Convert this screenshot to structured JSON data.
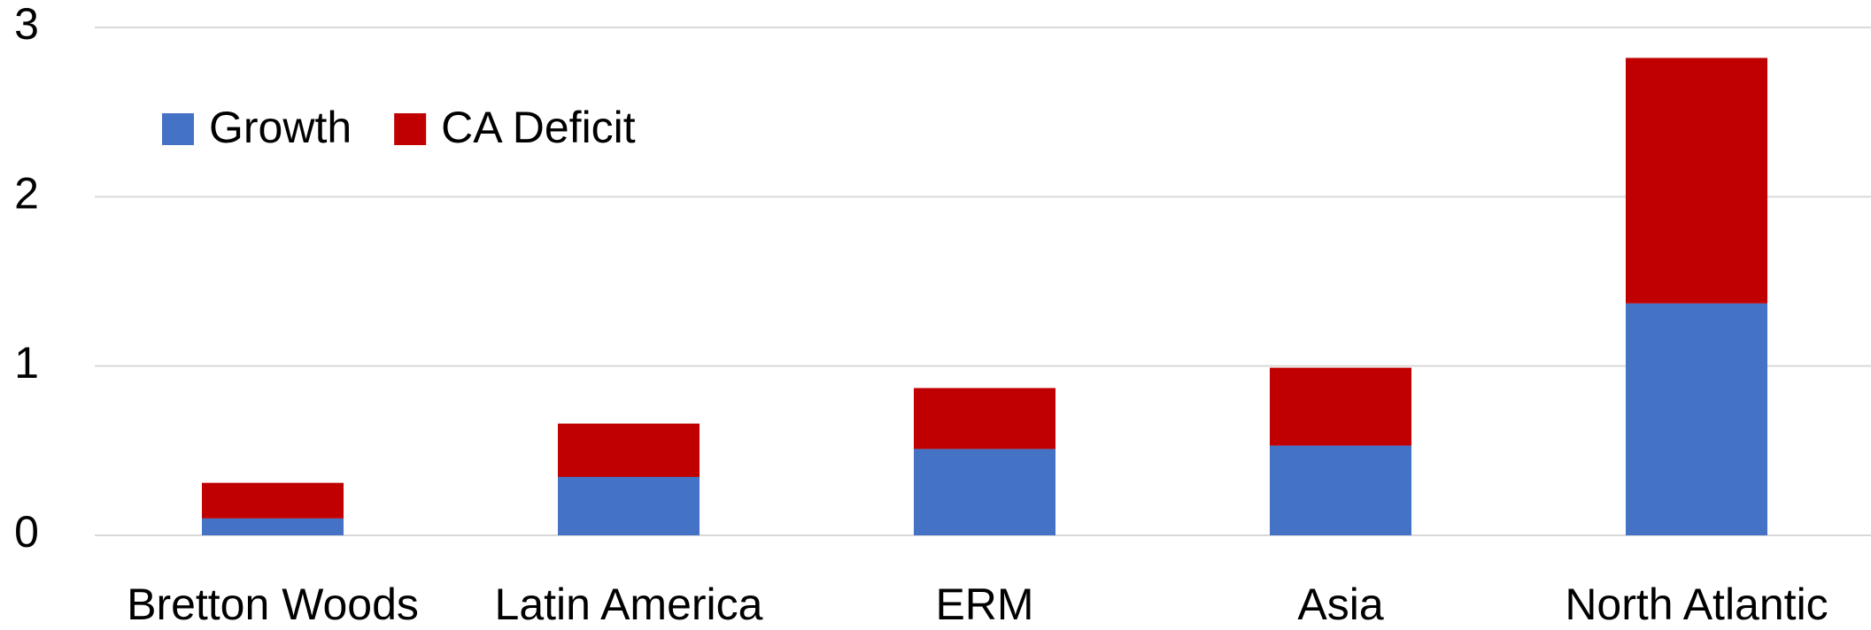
{
  "chart_data": {
    "type": "bar",
    "stacked": true,
    "categories": [
      "Bretton Woods",
      "Latin America",
      "ERM",
      "Asia",
      "North Atlantic"
    ],
    "series": [
      {
        "name": "Growth",
        "color": "#4472c4",
        "values": [
          0.1,
          0.345,
          0.51,
          0.53,
          1.37
        ]
      },
      {
        "name": "CA Deficit",
        "color": "#c00000",
        "values": [
          0.21,
          0.315,
          0.36,
          0.46,
          1.45
        ]
      }
    ],
    "ylim": [
      0,
      3
    ],
    "yticks": [
      0,
      1,
      2,
      3
    ],
    "grid": true,
    "legend": "upper left"
  }
}
